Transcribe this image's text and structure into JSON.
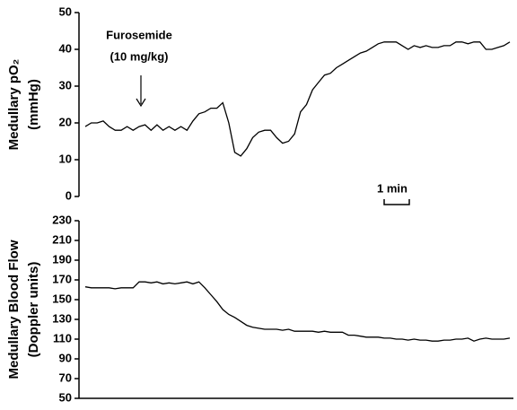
{
  "chart_data": [
    {
      "type": "line",
      "y_label_lines": [
        "Medullary pO₂",
        "(mmHg)"
      ],
      "annotations": [
        "Furosemide",
        "(10 mg/kg)"
      ],
      "scale_bar_label": "1 min",
      "color": "#000000",
      "ylim": [
        0,
        50
      ],
      "yticks": [
        0,
        10,
        20,
        30,
        40,
        50
      ],
      "x_axis_line": false,
      "values": [
        19,
        20,
        20,
        20.5,
        19,
        18,
        18,
        19,
        18,
        19,
        19.5,
        18,
        19.5,
        18,
        19,
        18,
        19,
        18,
        20.5,
        22.5,
        23,
        24,
        24,
        25.5,
        20,
        12,
        11,
        13,
        16,
        17.5,
        18,
        18,
        16,
        14.5,
        15,
        17,
        23,
        25,
        29,
        31,
        33,
        33.5,
        35,
        36,
        37,
        38,
        39,
        39.5,
        40.5,
        41.5,
        42,
        42,
        42,
        41,
        40,
        41,
        40.5,
        41,
        40.5,
        40.5,
        41,
        41,
        42,
        42,
        41.5,
        42,
        42,
        40,
        40,
        40.5,
        41,
        42
      ]
    },
    {
      "type": "line",
      "y_label_lines": [
        "Medullary Blood Flow",
        "(Doppler units)"
      ],
      "color": "#000000",
      "ylim": [
        50,
        230
      ],
      "yticks": [
        50,
        70,
        90,
        110,
        130,
        150,
        170,
        190,
        210,
        230
      ],
      "x_axis_line": true,
      "values": [
        163,
        162,
        162,
        162,
        162,
        161,
        162,
        162,
        162,
        168,
        168,
        167,
        168,
        166,
        167,
        166,
        167,
        168,
        166,
        168,
        162,
        155,
        148,
        140,
        135,
        132,
        128,
        124,
        122,
        121,
        120,
        120,
        120,
        119,
        120,
        118,
        118,
        118,
        118,
        117,
        118,
        117,
        117,
        117,
        114,
        114,
        113,
        112,
        112,
        112,
        111,
        111,
        110,
        110,
        109,
        110,
        109,
        109,
        108,
        108,
        109,
        109,
        110,
        110,
        111,
        108,
        110,
        111,
        110,
        110,
        110,
        111
      ]
    }
  ]
}
